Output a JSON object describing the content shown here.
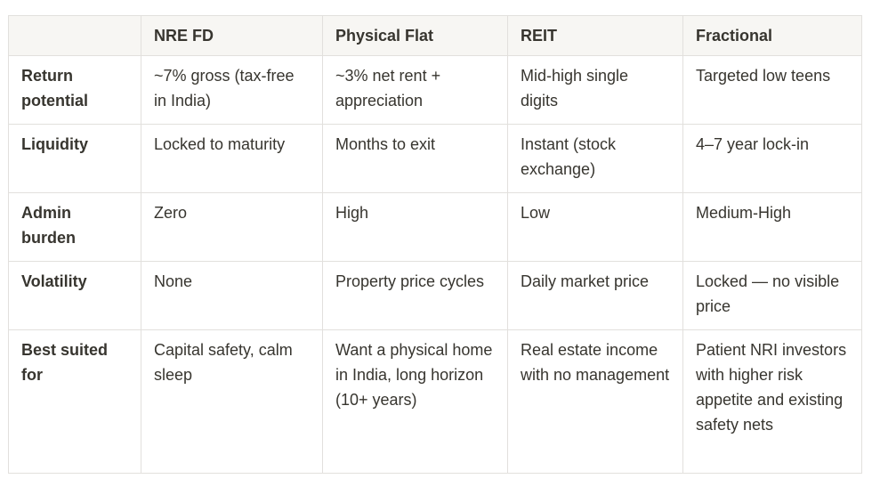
{
  "colors": {
    "header_bg": "#f7f6f3",
    "border": "#e2e0dd",
    "text": "#37352f",
    "page_bg": "#ffffff"
  },
  "table": {
    "columns": [
      "",
      "NRE FD",
      "Physical Flat",
      "REIT",
      "Fractional"
    ],
    "rows": [
      {
        "label": "Return potential",
        "values": [
          "~7% gross (tax-free in India)",
          "~3% net rent + appreciation",
          "Mid-high single digits",
          "Targeted low teens"
        ]
      },
      {
        "label": "Liquidity",
        "values": [
          "Locked to maturity",
          "Months to exit",
          "Instant (stock exchange)",
          "4–7 year lock-in"
        ]
      },
      {
        "label": "Admin burden",
        "values": [
          "Zero",
          "High",
          "Low",
          "Medium-High"
        ]
      },
      {
        "label": "Volatility",
        "values": [
          "None",
          "Property price cycles",
          "Daily market price",
          "Locked — no visible price"
        ]
      },
      {
        "label": "Best suited for",
        "values": [
          "Capital safety, calm sleep",
          "Want a physical home in India, long horizon (10+ years)",
          "Real estate income with no management",
          "Patient NRI investors with higher risk appetite and existing safety nets"
        ]
      }
    ]
  }
}
